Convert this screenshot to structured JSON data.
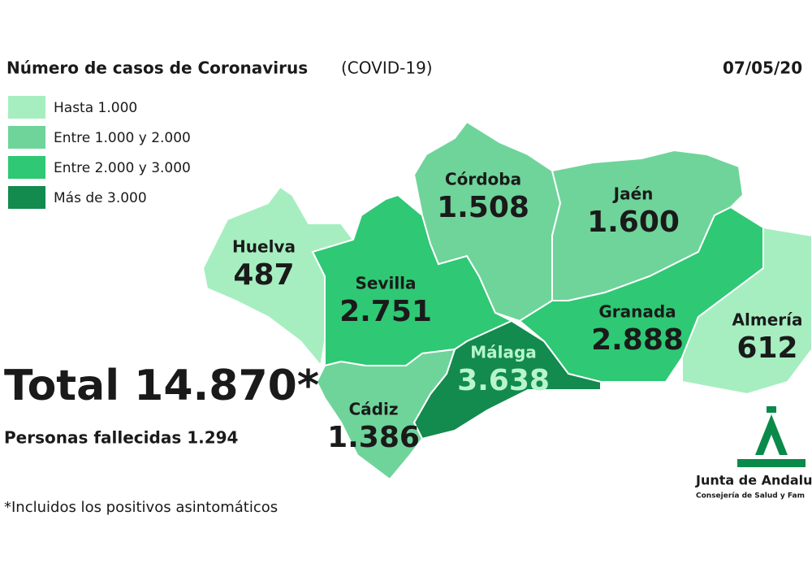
{
  "header": {
    "title": "Número de casos de Coronavirus",
    "subtitle": "(COVID-19)",
    "date": "07/05/20"
  },
  "legend": [
    {
      "label": "Hasta 1.000",
      "color": "#a6eec0"
    },
    {
      "label": "Entre 1.000 y 2.000",
      "color": "#6fd49a"
    },
    {
      "label": "Entre 2.000 y 3.000",
      "color": "#2fc874"
    },
    {
      "label": "Más de 3.000",
      "color": "#138a4e"
    }
  ],
  "provinces": [
    {
      "name": "Huelva",
      "value": "487",
      "color": "#a6eec0"
    },
    {
      "name": "Sevilla",
      "value": "2.751",
      "color": "#2fc874"
    },
    {
      "name": "Córdoba",
      "value": "1.508",
      "color": "#6fd49a"
    },
    {
      "name": "Jaén",
      "value": "1.600",
      "color": "#6fd49a"
    },
    {
      "name": "Granada",
      "value": "2.888",
      "color": "#2fc874"
    },
    {
      "name": "Almería",
      "value": "612",
      "color": "#a6eec0"
    },
    {
      "name": "Málaga",
      "value": "3.638",
      "color": "#138a4e"
    },
    {
      "name": "Cádiz",
      "value": "1.386",
      "color": "#6fd49a"
    }
  ],
  "summary": {
    "total": "Total 14.870*",
    "deaths": "Personas fallecidas 1.294",
    "footnote": "*Incluidos los positivos asintomáticos"
  },
  "logo": {
    "name": "Junta de Andalu",
    "department": "Consejería de Salud y Fam"
  }
}
